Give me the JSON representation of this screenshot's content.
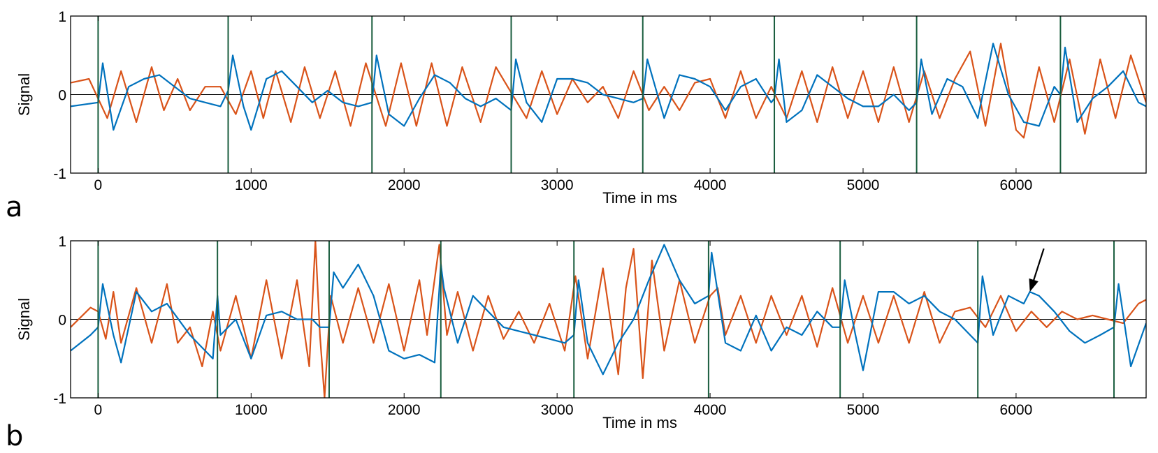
{
  "colors": {
    "series_orange": "#D95319",
    "series_blue": "#0072BD",
    "marker_green": "#1B5E3F",
    "axis": "#000000"
  },
  "chart_data": [
    {
      "type": "line",
      "panel_label": "a",
      "xlabel": "Time in ms",
      "ylabel": "Signal",
      "xlim": [
        -180,
        6850
      ],
      "ylim": [
        -1,
        1
      ],
      "x_ticks": [
        0,
        1000,
        2000,
        3000,
        4000,
        5000,
        6000
      ],
      "x_tick_labels": [
        "0",
        "1000",
        "2000",
        "3000",
        "4000",
        "5000",
        "6000"
      ],
      "y_ticks": [
        -1,
        0,
        1
      ],
      "y_tick_labels": [
        "-1",
        "0",
        "1"
      ],
      "markers": [
        0,
        850,
        1790,
        2700,
        3560,
        4420,
        5350,
        6290
      ],
      "series": [
        {
          "name": "orange",
          "color_key": "series_orange",
          "x": [
            -180,
            -60,
            60,
            150,
            250,
            350,
            430,
            520,
            600,
            700,
            800,
            900,
            1000,
            1080,
            1160,
            1260,
            1350,
            1450,
            1550,
            1650,
            1750,
            1880,
            1980,
            2080,
            2180,
            2280,
            2380,
            2500,
            2600,
            2800,
            2900,
            3000,
            3100,
            3200,
            3300,
            3400,
            3500,
            3600,
            3700,
            3800,
            3900,
            4000,
            4100,
            4200,
            4300,
            4400,
            4500,
            4600,
            4700,
            4800,
            4900,
            5000,
            5100,
            5200,
            5300,
            5400,
            5500,
            5600,
            5700,
            5800,
            5900,
            6000,
            6050,
            6150,
            6250,
            6350,
            6450,
            6550,
            6650,
            6750,
            6850
          ],
          "y": [
            0.15,
            0.2,
            -0.3,
            0.3,
            -0.35,
            0.35,
            -0.2,
            0.2,
            -0.2,
            0.1,
            0.1,
            -0.25,
            0.3,
            -0.3,
            0.3,
            -0.35,
            0.35,
            -0.3,
            0.3,
            -0.4,
            0.4,
            -0.4,
            0.4,
            -0.4,
            0.4,
            -0.4,
            0.35,
            -0.35,
            0.35,
            -0.3,
            0.3,
            -0.25,
            0.2,
            -0.1,
            0.1,
            -0.3,
            0.3,
            -0.2,
            0.1,
            -0.2,
            0.15,
            0.2,
            -0.3,
            0.3,
            -0.3,
            0.1,
            -0.3,
            0.3,
            -0.35,
            0.35,
            -0.3,
            0.3,
            -0.35,
            0.35,
            -0.35,
            0.3,
            -0.3,
            0.2,
            0.55,
            -0.4,
            0.65,
            -0.45,
            -0.55,
            0.35,
            -0.35,
            0.45,
            -0.5,
            0.45,
            -0.3,
            0.5,
            -0.1
          ]
        },
        {
          "name": "blue",
          "color_key": "series_blue",
          "x": [
            -180,
            0,
            30,
            100,
            200,
            300,
            400,
            500,
            600,
            700,
            800,
            850,
            880,
            950,
            1000,
            1100,
            1200,
            1300,
            1400,
            1500,
            1600,
            1700,
            1790,
            1820,
            1900,
            2000,
            2100,
            2200,
            2300,
            2400,
            2500,
            2600,
            2700,
            2730,
            2800,
            2900,
            3000,
            3100,
            3200,
            3300,
            3400,
            3500,
            3560,
            3590,
            3700,
            3800,
            3900,
            4000,
            4100,
            4200,
            4300,
            4400,
            4420,
            4450,
            4500,
            4600,
            4700,
            4800,
            4900,
            5000,
            5100,
            5200,
            5300,
            5350,
            5380,
            5450,
            5550,
            5650,
            5750,
            5850,
            5950,
            6050,
            6150,
            6250,
            6290,
            6320,
            6400,
            6500,
            6600,
            6700,
            6800,
            6850
          ],
          "y": [
            -0.15,
            -0.1,
            0.4,
            -0.45,
            0.1,
            0.2,
            0.25,
            0.1,
            -0.05,
            -0.1,
            -0.15,
            0.05,
            0.5,
            -0.15,
            -0.45,
            0.2,
            0.3,
            0.1,
            -0.1,
            0.05,
            -0.1,
            -0.15,
            -0.1,
            0.5,
            -0.25,
            -0.4,
            -0.05,
            0.25,
            0.15,
            -0.05,
            -0.15,
            -0.05,
            -0.2,
            0.45,
            -0.1,
            -0.35,
            0.2,
            0.2,
            0.15,
            0.0,
            -0.05,
            -0.1,
            -0.05,
            0.45,
            -0.3,
            0.25,
            0.2,
            0.1,
            -0.2,
            0.1,
            0.2,
            -0.1,
            -0.05,
            0.45,
            -0.35,
            -0.2,
            0.25,
            0.1,
            -0.05,
            -0.15,
            -0.15,
            0.0,
            -0.2,
            -0.1,
            0.45,
            -0.25,
            0.2,
            0.1,
            -0.3,
            0.65,
            0.0,
            -0.35,
            -0.4,
            0.1,
            0.0,
            0.6,
            -0.35,
            -0.05,
            0.1,
            0.3,
            -0.1,
            -0.15
          ]
        }
      ]
    },
    {
      "type": "line",
      "panel_label": "b",
      "xlabel": "Time in ms",
      "ylabel": "Signal",
      "xlim": [
        -180,
        6850
      ],
      "ylim": [
        -1,
        1
      ],
      "x_ticks": [
        0,
        1000,
        2000,
        3000,
        4000,
        5000,
        6000
      ],
      "x_tick_labels": [
        "0",
        "1000",
        "2000",
        "3000",
        "4000",
        "5000",
        "6000"
      ],
      "y_ticks": [
        -1,
        0,
        1
      ],
      "y_tick_labels": [
        "-1",
        "0",
        "1"
      ],
      "markers": [
        0,
        780,
        1510,
        2240,
        3110,
        3990,
        4850,
        5750,
        6640
      ],
      "annotation": {
        "type": "arrow",
        "target_x": 6090,
        "target_y": 0.35,
        "direction": "from upper-right"
      },
      "series": [
        {
          "name": "orange",
          "color_key": "series_orange",
          "x": [
            -180,
            -50,
            0,
            50,
            100,
            150,
            250,
            350,
            450,
            520,
            600,
            680,
            750,
            800,
            900,
            1000,
            1100,
            1200,
            1300,
            1380,
            1420,
            1450,
            1480,
            1520,
            1600,
            1700,
            1800,
            1900,
            2000,
            2100,
            2150,
            2230,
            2280,
            2350,
            2450,
            2550,
            2650,
            2750,
            2850,
            2950,
            3050,
            3120,
            3200,
            3300,
            3400,
            3450,
            3500,
            3560,
            3620,
            3700,
            3800,
            3900,
            4000,
            4050,
            4100,
            4200,
            4300,
            4400,
            4500,
            4600,
            4700,
            4800,
            4900,
            5000,
            5100,
            5200,
            5300,
            5400,
            5500,
            5600,
            5700,
            5800,
            5900,
            6000,
            6100,
            6200,
            6300,
            6400,
            6500,
            6600,
            6700,
            6800,
            6850
          ],
          "y": [
            -0.1,
            0.15,
            0.1,
            -0.25,
            0.35,
            -0.3,
            0.4,
            -0.3,
            0.45,
            -0.3,
            -0.1,
            -0.6,
            0.1,
            -0.4,
            0.3,
            -0.5,
            0.5,
            -0.5,
            0.5,
            -0.6,
            1.0,
            -0.2,
            -1.0,
            0.3,
            -0.3,
            0.4,
            -0.3,
            0.45,
            -0.4,
            0.5,
            -0.2,
            0.95,
            -0.2,
            0.35,
            -0.4,
            0.3,
            -0.25,
            0.1,
            -0.3,
            0.2,
            -0.4,
            0.55,
            -0.5,
            0.65,
            -0.7,
            0.4,
            0.9,
            -0.75,
            0.75,
            -0.4,
            0.5,
            -0.3,
            0.3,
            0.4,
            -0.2,
            0.3,
            -0.3,
            0.3,
            -0.2,
            0.3,
            -0.35,
            0.4,
            -0.3,
            0.3,
            -0.3,
            0.3,
            -0.3,
            0.35,
            -0.3,
            0.1,
            0.15,
            -0.1,
            0.3,
            -0.15,
            0.1,
            -0.1,
            0.1,
            0.0,
            0.05,
            0.0,
            -0.05,
            0.2,
            0.25
          ]
        },
        {
          "name": "blue",
          "color_key": "series_blue",
          "x": [
            -180,
            -50,
            0,
            30,
            100,
            150,
            250,
            350,
            450,
            600,
            700,
            750,
            780,
            800,
            900,
            1000,
            1100,
            1200,
            1300,
            1400,
            1450,
            1510,
            1540,
            1600,
            1700,
            1800,
            1900,
            2000,
            2100,
            2200,
            2240,
            2260,
            2350,
            2450,
            2550,
            2650,
            2750,
            2850,
            2950,
            3050,
            3110,
            3140,
            3200,
            3300,
            3400,
            3500,
            3600,
            3700,
            3800,
            3900,
            3990,
            4010,
            4100,
            4200,
            4300,
            4400,
            4500,
            4600,
            4700,
            4800,
            4850,
            4880,
            4950,
            5000,
            5100,
            5200,
            5300,
            5400,
            5500,
            5600,
            5700,
            5750,
            5780,
            5850,
            5950,
            6050,
            6090,
            6150,
            6250,
            6350,
            6450,
            6550,
            6640,
            6670,
            6750,
            6850
          ],
          "y": [
            -0.4,
            -0.2,
            -0.1,
            0.45,
            -0.2,
            -0.55,
            0.35,
            0.1,
            0.2,
            -0.2,
            -0.4,
            -0.5,
            0.3,
            -0.2,
            0.0,
            -0.5,
            0.05,
            0.1,
            0.0,
            0.0,
            -0.1,
            -0.1,
            0.6,
            0.4,
            0.7,
            0.3,
            -0.4,
            -0.5,
            -0.45,
            -0.55,
            0.7,
            0.4,
            -0.3,
            0.3,
            0.1,
            -0.1,
            -0.15,
            -0.2,
            -0.25,
            -0.3,
            -0.2,
            0.5,
            -0.3,
            -0.7,
            -0.3,
            0.0,
            0.5,
            0.95,
            0.5,
            0.2,
            0.3,
            0.85,
            -0.3,
            -0.4,
            0.05,
            -0.4,
            -0.1,
            -0.2,
            0.1,
            -0.1,
            -0.1,
            0.5,
            -0.2,
            -0.65,
            0.35,
            0.35,
            0.2,
            0.3,
            0.1,
            0.0,
            -0.2,
            -0.3,
            0.55,
            -0.2,
            0.3,
            0.2,
            0.35,
            0.3,
            0.1,
            -0.15,
            -0.3,
            -0.2,
            -0.1,
            0.45,
            -0.6,
            -0.05
          ]
        }
      ]
    }
  ]
}
